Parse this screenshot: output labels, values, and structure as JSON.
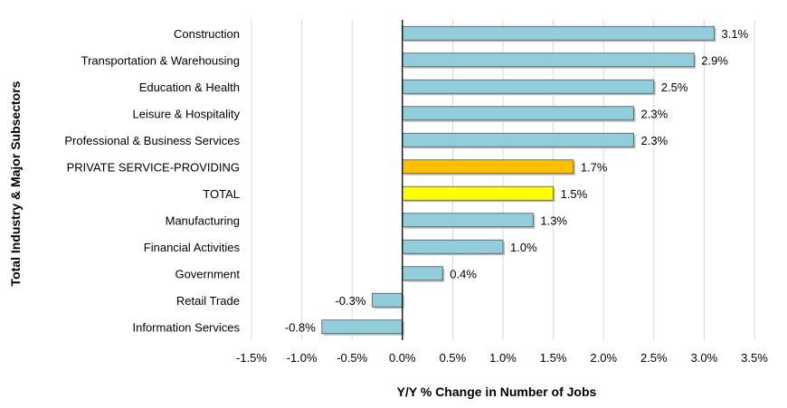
{
  "chart_data": {
    "type": "bar",
    "orientation": "horizontal",
    "title": "",
    "xlabel": "Y/Y % Change in Number of Jobs",
    "ylabel": "Total Industry & Major Subsectors",
    "xlim": [
      -1.5,
      3.5
    ],
    "xticks": [
      -1.5,
      -1.0,
      -0.5,
      0.0,
      0.5,
      1.0,
      1.5,
      2.0,
      2.5,
      3.0,
      3.5
    ],
    "xtick_labels": [
      "-1.5%",
      "-1.0%",
      "-0.5%",
      "0.0%",
      "0.5%",
      "1.0%",
      "1.5%",
      "2.0%",
      "2.5%",
      "3.0%",
      "3.5%"
    ],
    "grid": true,
    "categories": [
      "Construction",
      "Transportation & Warehousing",
      "Education & Health",
      "Leisure & Hospitality",
      "Professional & Business Services",
      "PRIVATE SERVICE-PROVIDING",
      "TOTAL",
      "Manufacturing",
      "Financial Activities",
      "Government",
      "Retail Trade",
      "Information Services"
    ],
    "values": [
      3.1,
      2.9,
      2.5,
      2.3,
      2.3,
      1.7,
      1.5,
      1.3,
      1.0,
      0.4,
      -0.3,
      -0.8
    ],
    "value_labels": [
      "3.1%",
      "2.9%",
      "2.5%",
      "2.3%",
      "2.3%",
      "1.7%",
      "1.5%",
      "1.3%",
      "1.0%",
      "0.4%",
      "-0.3%",
      "-0.8%"
    ],
    "colors": [
      "#92cddc",
      "#92cddc",
      "#92cddc",
      "#92cddc",
      "#92cddc",
      "#ffc000",
      "#ffff00",
      "#92cddc",
      "#92cddc",
      "#92cddc",
      "#92cddc",
      "#92cddc"
    ]
  }
}
